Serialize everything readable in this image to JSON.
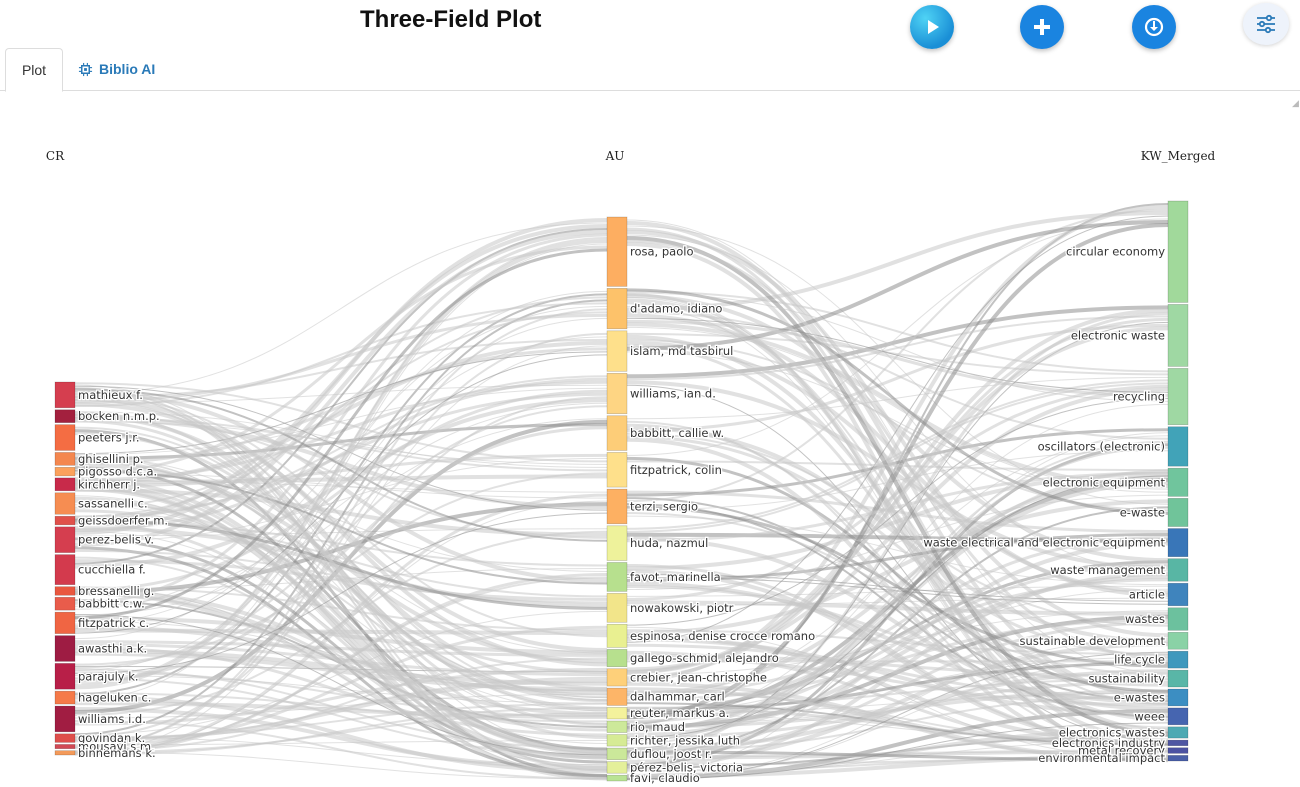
{
  "header": {
    "title": "Three-Field Plot"
  },
  "toolbar": {
    "buttons": [
      {
        "name": "play-button",
        "icon": "play-icon"
      },
      {
        "name": "add-button",
        "icon": "plus-icon"
      },
      {
        "name": "download-button",
        "icon": "download-icon"
      },
      {
        "name": "settings-button",
        "icon": "sliders-icon"
      }
    ]
  },
  "tabs": [
    {
      "label": "Plot",
      "active": true
    },
    {
      "label": "Biblio AI",
      "icon": "chip-icon",
      "active": false
    }
  ],
  "chart_data": {
    "type": "sankey",
    "columns": [
      "CR",
      "AU",
      "KW_Merged"
    ],
    "nodes": {
      "CR": [
        {
          "label": "mathieux f.",
          "weight": 6,
          "color": "#d53e4f"
        },
        {
          "label": "bocken n.m.p.",
          "weight": 3,
          "color": "#a3203e"
        },
        {
          "label": "peeters j.r.",
          "weight": 6,
          "color": "#f46d43"
        },
        {
          "label": "ghisellini p.",
          "weight": 3,
          "color": "#f4874f"
        },
        {
          "label": "pigosso d.c.a.",
          "weight": 2,
          "color": "#fba15c"
        },
        {
          "label": "kirchherr j.",
          "weight": 3,
          "color": "#c82a4a"
        },
        {
          "label": "sassanelli c.",
          "weight": 5,
          "color": "#f68d52"
        },
        {
          "label": "geissdoerfer m.",
          "weight": 2,
          "color": "#e0504a"
        },
        {
          "label": "perez-belis v.",
          "weight": 6,
          "color": "#d53e4f"
        },
        {
          "label": "cucchiella f.",
          "weight": 7,
          "color": "#d33a4d"
        },
        {
          "label": "bressanelli g.",
          "weight": 2,
          "color": "#e9573f"
        },
        {
          "label": "babbitt c.w.",
          "weight": 3,
          "color": "#e95c4b"
        },
        {
          "label": "fitzpatrick c.",
          "weight": 5,
          "color": "#f06543"
        },
        {
          "label": "awasthi a.k.",
          "weight": 6,
          "color": "#9e1c43"
        },
        {
          "label": "parajuly k.",
          "weight": 6,
          "color": "#b81f48"
        },
        {
          "label": "hageluken c.",
          "weight": 3,
          "color": "#f57a49"
        },
        {
          "label": "williams i.d.",
          "weight": 6,
          "color": "#a11d42"
        },
        {
          "label": "govindan k.",
          "weight": 2,
          "color": "#df4e4b"
        },
        {
          "label": "mousavi s.m.",
          "weight": 1,
          "color": "#d24a55"
        },
        {
          "label": "binnemans k.",
          "weight": 1,
          "color": "#f39a5a"
        }
      ],
      "AU": [
        {
          "label": "rosa, paolo",
          "weight": 12,
          "color": "#fdae61"
        },
        {
          "label": "d'adamo, idiano",
          "weight": 7,
          "color": "#fdc26a"
        },
        {
          "label": "islam, md tasbirul",
          "weight": 7,
          "color": "#fee08b"
        },
        {
          "label": "williams, ian d.",
          "weight": 7,
          "color": "#fed583"
        },
        {
          "label": "babbitt, callie w.",
          "weight": 6,
          "color": "#fdcd78"
        },
        {
          "label": "fitzpatrick, colin",
          "weight": 6,
          "color": "#fee08b"
        },
        {
          "label": "terzi, sergio",
          "weight": 6,
          "color": "#fdb062"
        },
        {
          "label": "huda, nazmul",
          "weight": 6,
          "color": "#eef29b"
        },
        {
          "label": "favot, marinella",
          "weight": 5,
          "color": "#b7e08e"
        },
        {
          "label": "nowakowski, piotr",
          "weight": 5,
          "color": "#f2e58a"
        },
        {
          "label": "espinosa, denise crocce romano",
          "weight": 4,
          "color": "#e9f091"
        },
        {
          "label": "gallego-schmid, alejandro",
          "weight": 3,
          "color": "#b7e08e"
        },
        {
          "label": "crebier, jean-christophe",
          "weight": 3,
          "color": "#fed07a"
        },
        {
          "label": "dalhammar, carl",
          "weight": 3,
          "color": "#fdb568"
        },
        {
          "label": "reuter, markus a.",
          "weight": 2,
          "color": "#f4f29c"
        },
        {
          "label": "rio, maud",
          "weight": 2,
          "color": "#cde99a"
        },
        {
          "label": "richter, jessika luth",
          "weight": 2,
          "color": "#d6eb95"
        },
        {
          "label": "duflou, joost r.",
          "weight": 2,
          "color": "#cbe89a"
        },
        {
          "label": "pérez-belis, victoria",
          "weight": 2,
          "color": "#e4f09a"
        },
        {
          "label": "favi, claudio",
          "weight": 1,
          "color": "#b9e394"
        }
      ],
      "KW_Merged": [
        {
          "label": "circular economy",
          "weight": 18,
          "color": "#a1d99b"
        },
        {
          "label": "electronic waste",
          "weight": 11,
          "color": "#9fd8a3"
        },
        {
          "label": "recycling",
          "weight": 10,
          "color": "#9fd8a3"
        },
        {
          "label": "oscillators (electronic)",
          "weight": 7,
          "color": "#41a3b8"
        },
        {
          "label": "electronic equipment",
          "weight": 5,
          "color": "#70c59d"
        },
        {
          "label": "e-waste",
          "weight": 5,
          "color": "#70c49a"
        },
        {
          "label": "waste electrical and electronic equipment",
          "weight": 5,
          "color": "#3976b8"
        },
        {
          "label": "waste management",
          "weight": 4,
          "color": "#58b6a4"
        },
        {
          "label": "article",
          "weight": 4,
          "color": "#3f84bd"
        },
        {
          "label": "wastes",
          "weight": 4,
          "color": "#6cc19e"
        },
        {
          "label": "sustainable development",
          "weight": 3,
          "color": "#8ad2a6"
        },
        {
          "label": "life cycle",
          "weight": 3,
          "color": "#3f98bd"
        },
        {
          "label": "sustainability",
          "weight": 3,
          "color": "#59b6a7"
        },
        {
          "label": "e-wastes",
          "weight": 3,
          "color": "#3c8ec2"
        },
        {
          "label": "weee",
          "weight": 3,
          "color": "#4665b0"
        },
        {
          "label": "electronics wastes",
          "weight": 2,
          "color": "#4da9b3"
        },
        {
          "label": "electronics industry",
          "weight": 1,
          "color": "#4f56a3"
        },
        {
          "label": "metal recovery",
          "weight": 1,
          "color": "#4c52a2"
        },
        {
          "label": "environmental impact",
          "weight": 1,
          "color": "#4a5fa8"
        }
      ]
    }
  }
}
